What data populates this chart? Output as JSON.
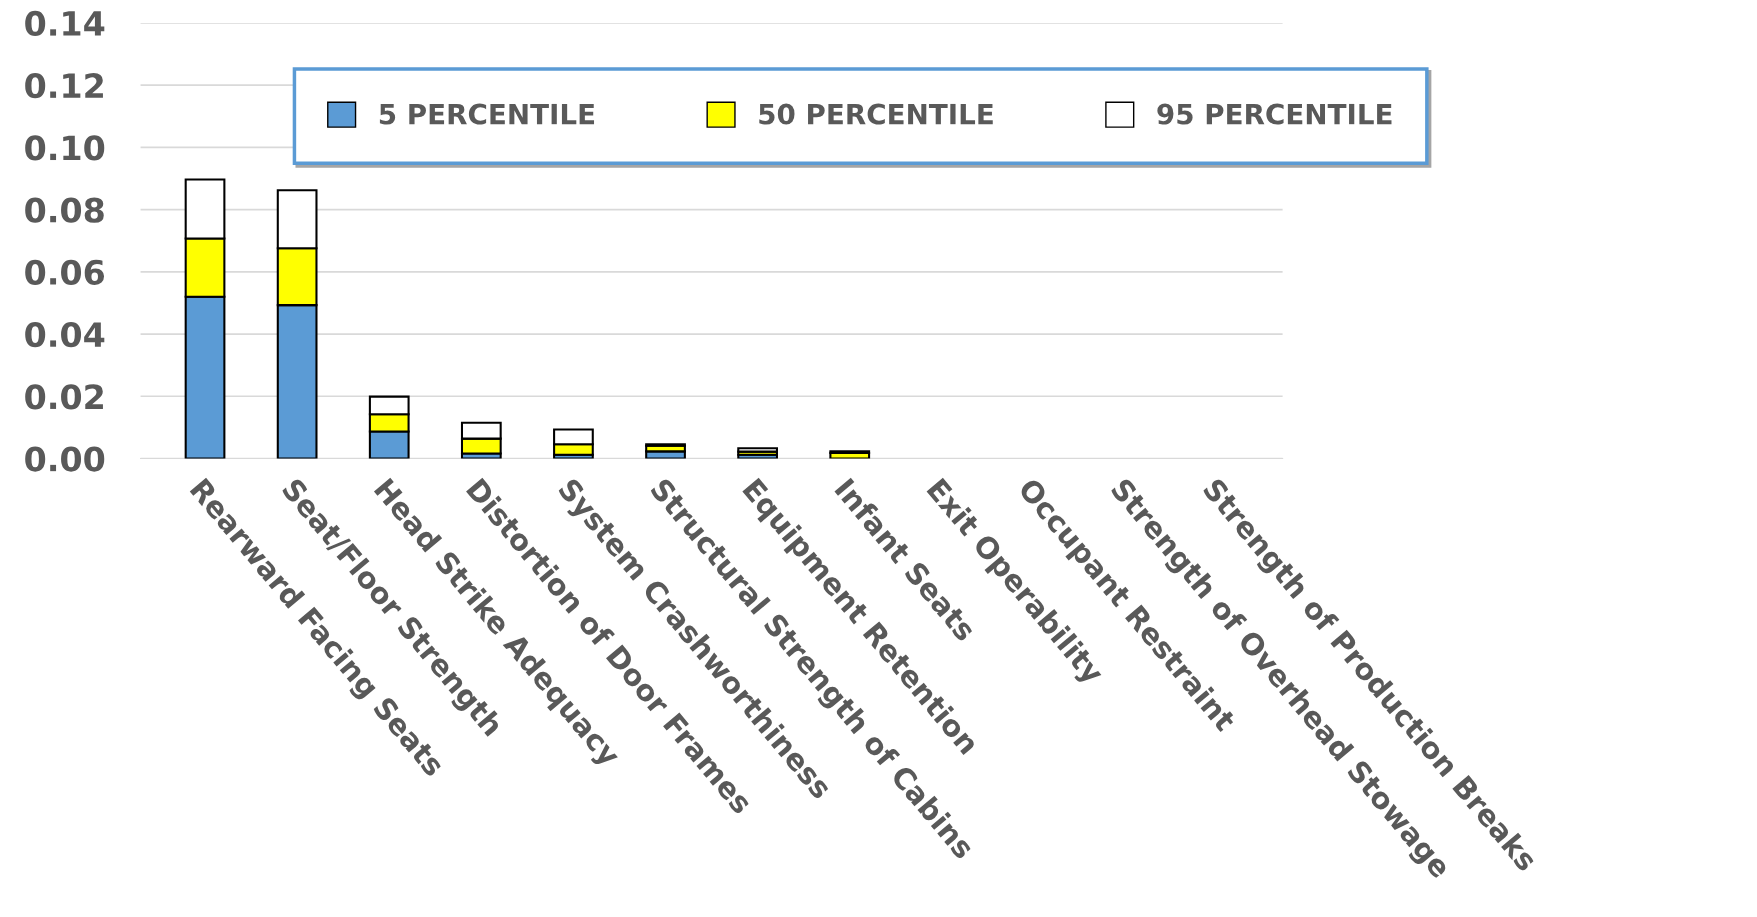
{
  "chart_data": {
    "type": "bar",
    "stacked": true,
    "categories": [
      "Rearward Facing Seats",
      "Seat/Floor Strength",
      "Head Strike Adequacy",
      "Distortion of Door Frames",
      "System Crashworthiness",
      "Structural Strength of Cabins",
      "Equipment Retention",
      "Infant Seats",
      "Exit Operability",
      "Occupant Restraint",
      "Strength of Overhead Stowage",
      "Strength of Production Breaks"
    ],
    "series": [
      {
        "name": "5 PERCENTILE",
        "color": "#5b9bd5",
        "values": [
          0.052,
          0.0493,
          0.0087,
          0.0016,
          0.0012,
          0.0023,
          0.0012,
          0,
          0,
          0,
          0,
          0
        ]
      },
      {
        "name": "50 PERCENTILE",
        "color": "#ffff00",
        "values": [
          0.0187,
          0.0183,
          0.0055,
          0.0048,
          0.0034,
          0.0018,
          0.001,
          0.0018,
          0,
          0,
          0,
          0
        ]
      },
      {
        "name": "95 PERCENTILE",
        "color": "#ffffff",
        "values": [
          0.019,
          0.0186,
          0.0057,
          0.0051,
          0.0047,
          0.0005,
          0.0011,
          0.0005,
          0,
          0,
          0,
          0
        ]
      }
    ],
    "ylim": [
      0,
      0.14
    ],
    "yticks": [
      {
        "value": 0,
        "label": "0.00"
      },
      0.02,
      0.04,
      0.06,
      0.08,
      {
        "value": 0.1,
        "label": "0.10"
      },
      0.12,
      0.14
    ],
    "grid": "y",
    "legend": "top right"
  }
}
